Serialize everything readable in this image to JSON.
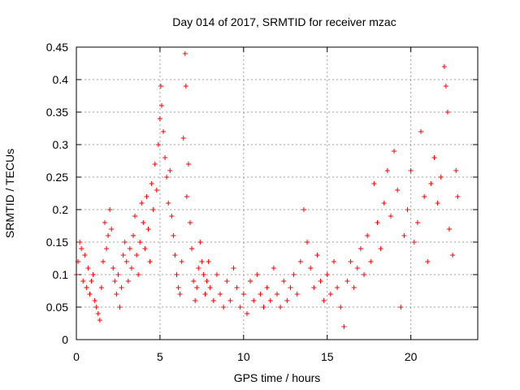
{
  "chart_data": {
    "type": "scatter",
    "title": "Day 014 of 2017, SRMTID for receiver mzac",
    "xlabel": "GPS time / hours",
    "ylabel": "SRMTID / TECUs",
    "xlim": [
      0,
      24
    ],
    "ylim": [
      0,
      0.45
    ],
    "xticks": [
      0,
      5,
      10,
      15,
      20
    ],
    "xtick_labels": [
      "0",
      "5",
      "10",
      "15",
      "20"
    ],
    "yticks": [
      0,
      0.05,
      0.1,
      0.15,
      0.2,
      0.25,
      0.3,
      0.35,
      0.4,
      0.45
    ],
    "ytick_labels": [
      "0",
      "0.05",
      "0.1",
      "0.15",
      "0.2",
      "0.25",
      "0.3",
      "0.35",
      "0.4",
      "0.45"
    ],
    "grid": true,
    "marker": "+",
    "color": "#ff0000",
    "series": [
      {
        "name": "SRMTID",
        "points": [
          [
            0.0,
            0.1
          ],
          [
            0.1,
            0.12
          ],
          [
            0.2,
            0.15
          ],
          [
            0.3,
            0.14
          ],
          [
            0.4,
            0.09
          ],
          [
            0.5,
            0.13
          ],
          [
            0.6,
            0.08
          ],
          [
            0.7,
            0.11
          ],
          [
            0.8,
            0.07
          ],
          [
            0.9,
            0.09
          ],
          [
            1.0,
            0.1
          ],
          [
            1.1,
            0.06
          ],
          [
            1.2,
            0.05
          ],
          [
            1.3,
            0.04
          ],
          [
            1.4,
            0.03
          ],
          [
            1.5,
            0.08
          ],
          [
            1.6,
            0.12
          ],
          [
            1.7,
            0.18
          ],
          [
            1.8,
            0.14
          ],
          [
            1.9,
            0.16
          ],
          [
            2.0,
            0.2
          ],
          [
            2.1,
            0.17
          ],
          [
            2.2,
            0.11
          ],
          [
            2.3,
            0.09
          ],
          [
            2.4,
            0.07
          ],
          [
            2.5,
            0.1
          ],
          [
            2.6,
            0.05
          ],
          [
            2.7,
            0.08
          ],
          [
            2.8,
            0.13
          ],
          [
            2.9,
            0.15
          ],
          [
            3.0,
            0.12
          ],
          [
            3.1,
            0.09
          ],
          [
            3.2,
            0.14
          ],
          [
            3.3,
            0.11
          ],
          [
            3.4,
            0.16
          ],
          [
            3.5,
            0.19
          ],
          [
            3.6,
            0.13
          ],
          [
            3.7,
            0.1
          ],
          [
            3.8,
            0.15
          ],
          [
            3.9,
            0.21
          ],
          [
            4.0,
            0.18
          ],
          [
            4.1,
            0.14
          ],
          [
            4.2,
            0.22
          ],
          [
            4.3,
            0.17
          ],
          [
            4.4,
            0.12
          ],
          [
            4.5,
            0.24
          ],
          [
            4.6,
            0.2
          ],
          [
            4.7,
            0.27
          ],
          [
            4.8,
            0.23
          ],
          [
            4.9,
            0.3
          ],
          [
            5.0,
            0.34
          ],
          [
            5.05,
            0.39
          ],
          [
            5.1,
            0.36
          ],
          [
            5.2,
            0.32
          ],
          [
            5.3,
            0.28
          ],
          [
            5.4,
            0.25
          ],
          [
            5.5,
            0.21
          ],
          [
            5.6,
            0.26
          ],
          [
            5.7,
            0.19
          ],
          [
            5.8,
            0.16
          ],
          [
            5.9,
            0.13
          ],
          [
            6.0,
            0.1
          ],
          [
            6.1,
            0.08
          ],
          [
            6.2,
            0.07
          ],
          [
            6.3,
            0.12
          ],
          [
            6.4,
            0.31
          ],
          [
            6.5,
            0.44
          ],
          [
            6.55,
            0.39
          ],
          [
            6.6,
            0.22
          ],
          [
            6.7,
            0.27
          ],
          [
            6.8,
            0.18
          ],
          [
            6.9,
            0.14
          ],
          [
            7.0,
            0.09
          ],
          [
            7.1,
            0.06
          ],
          [
            7.2,
            0.08
          ],
          [
            7.3,
            0.11
          ],
          [
            7.4,
            0.15
          ],
          [
            7.5,
            0.12
          ],
          [
            7.6,
            0.1
          ],
          [
            7.7,
            0.07
          ],
          [
            7.8,
            0.09
          ],
          [
            7.9,
            0.12
          ],
          [
            8.0,
            0.08
          ],
          [
            8.2,
            0.06
          ],
          [
            8.4,
            0.1
          ],
          [
            8.6,
            0.07
          ],
          [
            8.8,
            0.05
          ],
          [
            9.0,
            0.09
          ],
          [
            9.2,
            0.06
          ],
          [
            9.4,
            0.11
          ],
          [
            9.6,
            0.08
          ],
          [
            9.8,
            0.05
          ],
          [
            10.0,
            0.07
          ],
          [
            10.2,
            0.04
          ],
          [
            10.4,
            0.09
          ],
          [
            10.6,
            0.06
          ],
          [
            10.8,
            0.1
          ],
          [
            11.0,
            0.07
          ],
          [
            11.2,
            0.05
          ],
          [
            11.4,
            0.08
          ],
          [
            11.6,
            0.06
          ],
          [
            11.8,
            0.11
          ],
          [
            12.0,
            0.07
          ],
          [
            12.2,
            0.05
          ],
          [
            12.4,
            0.09
          ],
          [
            12.6,
            0.06
          ],
          [
            12.8,
            0.08
          ],
          [
            13.0,
            0.1
          ],
          [
            13.2,
            0.07
          ],
          [
            13.4,
            0.12
          ],
          [
            13.6,
            0.2
          ],
          [
            13.8,
            0.15
          ],
          [
            14.0,
            0.11
          ],
          [
            14.2,
            0.08
          ],
          [
            14.4,
            0.13
          ],
          [
            14.6,
            0.09
          ],
          [
            14.8,
            0.06
          ],
          [
            15.0,
            0.1
          ],
          [
            15.2,
            0.07
          ],
          [
            15.4,
            0.12
          ],
          [
            15.6,
            0.08
          ],
          [
            15.8,
            0.05
          ],
          [
            16.0,
            0.02
          ],
          [
            16.2,
            0.09
          ],
          [
            16.4,
            0.12
          ],
          [
            16.6,
            0.08
          ],
          [
            16.8,
            0.11
          ],
          [
            17.0,
            0.14
          ],
          [
            17.2,
            0.1
          ],
          [
            17.4,
            0.16
          ],
          [
            17.6,
            0.12
          ],
          [
            17.8,
            0.24
          ],
          [
            18.0,
            0.18
          ],
          [
            18.2,
            0.14
          ],
          [
            18.4,
            0.21
          ],
          [
            18.6,
            0.26
          ],
          [
            18.8,
            0.19
          ],
          [
            19.0,
            0.29
          ],
          [
            19.2,
            0.23
          ],
          [
            19.4,
            0.05
          ],
          [
            19.6,
            0.16
          ],
          [
            19.8,
            0.2
          ],
          [
            20.0,
            0.26
          ],
          [
            20.2,
            0.15
          ],
          [
            20.4,
            0.18
          ],
          [
            20.6,
            0.32
          ],
          [
            20.8,
            0.22
          ],
          [
            21.0,
            0.12
          ],
          [
            21.2,
            0.24
          ],
          [
            21.4,
            0.28
          ],
          [
            21.6,
            0.21
          ],
          [
            21.8,
            0.25
          ],
          [
            22.0,
            0.42
          ],
          [
            22.1,
            0.39
          ],
          [
            22.2,
            0.35
          ],
          [
            22.3,
            0.17
          ],
          [
            22.5,
            0.13
          ],
          [
            22.7,
            0.26
          ],
          [
            22.8,
            0.22
          ]
        ]
      }
    ]
  }
}
